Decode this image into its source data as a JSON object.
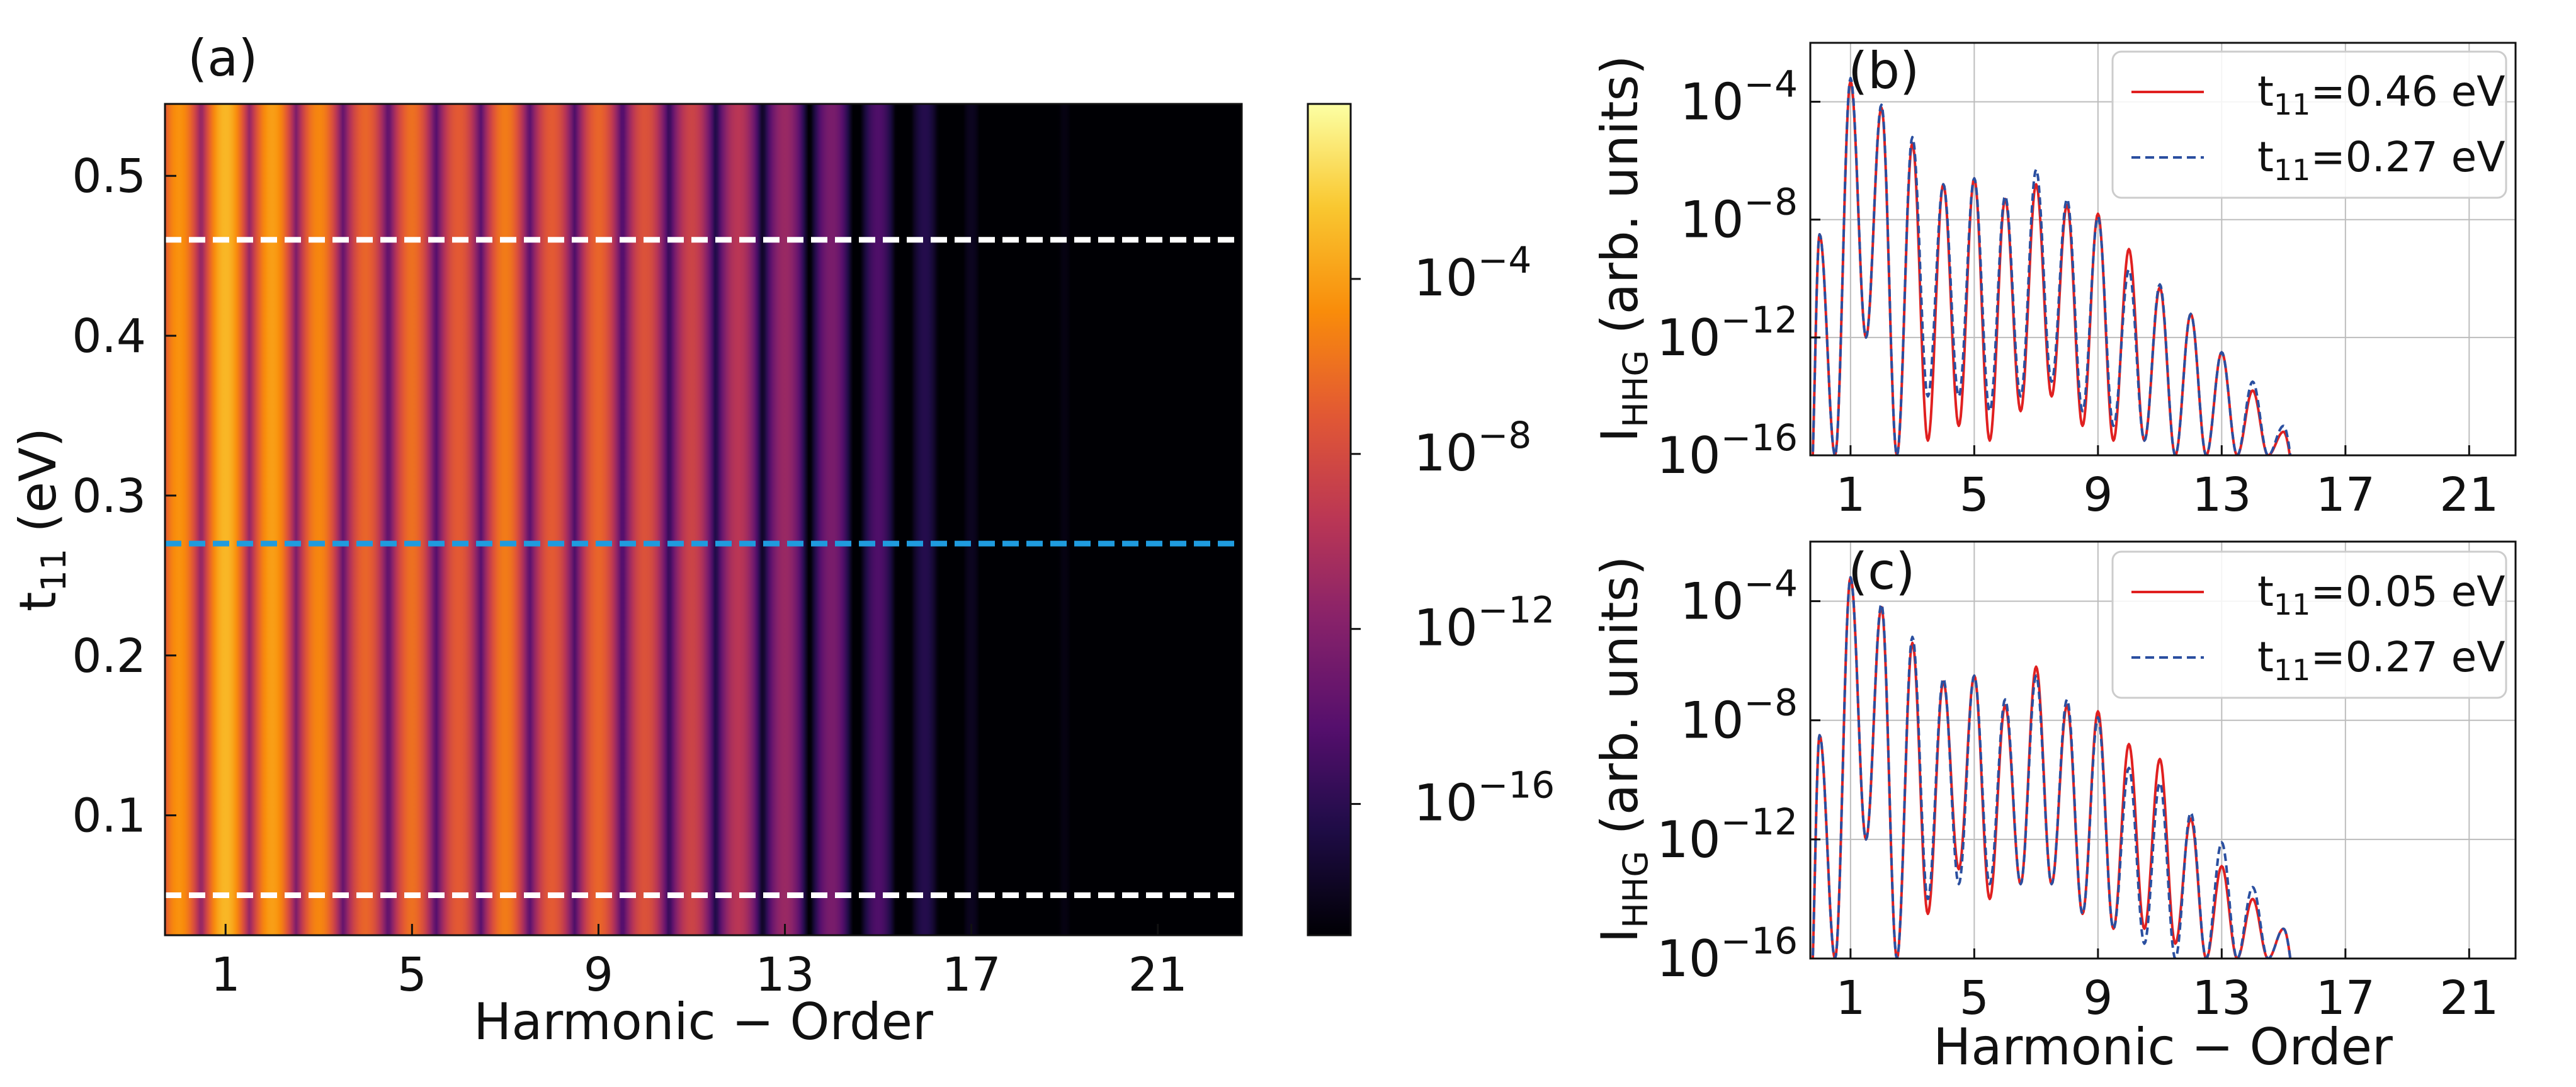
{
  "chart_data": [
    {
      "type": "heatmap",
      "panel_label": "(a)",
      "xlabel": "Harmonic − Order",
      "ylabel_main": "t",
      "ylabel_sub": "11",
      "ylabel_unit": " (eV)",
      "xlim": [
        -0.3,
        22.8
      ],
      "ylim": [
        0.025,
        0.545
      ],
      "xticks": [
        1,
        5,
        9,
        13,
        17,
        21
      ],
      "xtick_labels": [
        "1",
        "5",
        "9",
        "13",
        "17",
        "21"
      ],
      "yticks": [
        0.1,
        0.2,
        0.3,
        0.4,
        0.5
      ],
      "ytick_labels": [
        "0.1",
        "0.2",
        "0.3",
        "0.4",
        "0.5"
      ],
      "colorscale": "inferno",
      "colorbar_range_log10": [
        -19,
        0
      ],
      "colorbar_ticks_log10": [
        -16,
        -12,
        -8,
        -4
      ],
      "colorbar_tick_base": "10",
      "colorbar_tick_exponents": [
        "−16",
        "−12",
        "−8",
        "−4"
      ],
      "intensity_peaks_log10": [
        {
          "order": 0,
          "value": -4.5
        },
        {
          "order": 1,
          "value": -3.0
        },
        {
          "order": 2,
          "value": -4.0
        },
        {
          "order": 3,
          "value": -5.0
        },
        {
          "order": 4,
          "value": -6.5
        },
        {
          "order": 5,
          "value": -6.0
        },
        {
          "order": 6,
          "value": -7.0
        },
        {
          "order": 7,
          "value": -5.5
        },
        {
          "order": 8,
          "value": -7.0
        },
        {
          "order": 9,
          "value": -6.5
        },
        {
          "order": 10,
          "value": -7.5
        },
        {
          "order": 11,
          "value": -8.5
        },
        {
          "order": 12,
          "value": -9.5
        },
        {
          "order": 13,
          "value": -11.0
        },
        {
          "order": 14,
          "value": -12.5
        },
        {
          "order": 15,
          "value": -14.5
        },
        {
          "order": 16,
          "value": -16.3
        },
        {
          "order": 17,
          "value": -18.0
        },
        {
          "order": 19,
          "value": -18.5
        }
      ],
      "reference_lines": [
        {
          "t11": 0.46,
          "color": "#ffffff",
          "style": "dashed"
        },
        {
          "t11": 0.27,
          "color": "#1f9bde",
          "style": "dashed"
        },
        {
          "t11": 0.05,
          "color": "#ffffff",
          "style": "dashed"
        }
      ]
    },
    {
      "type": "line",
      "panel_label": "(b)",
      "xlabel": "",
      "ylabel_main": "I",
      "ylabel_sub": "HHG",
      "ylabel_unit": " (arb. units)",
      "xlim": [
        -0.3,
        22.5
      ],
      "ylim_log10": [
        -16,
        -2
      ],
      "yscale": "log",
      "xticks": [
        1,
        5,
        9,
        13,
        17,
        21
      ],
      "xtick_labels": [
        "1",
        "5",
        "9",
        "13",
        "17",
        "21"
      ],
      "yticks_log10": [
        -16,
        -12,
        -8,
        -4
      ],
      "ytick_base": "10",
      "ytick_exponents": [
        "−16",
        "−12",
        "−8",
        "−4"
      ],
      "grid": true,
      "legend_position": "top-right",
      "series": [
        {
          "name_main": "t",
          "name_sub": "11",
          "name_rest": "=0.46 eV",
          "color": "#e02020",
          "style": "solid",
          "peaks": [
            [
              0,
              -8.5
            ],
            [
              1,
              -3.3
            ],
            [
              2,
              -4.2
            ],
            [
              3,
              -5.4
            ],
            [
              4,
              -6.8
            ],
            [
              5,
              -6.6
            ],
            [
              6,
              -7.3
            ],
            [
              7,
              -6.8
            ],
            [
              8,
              -7.5
            ],
            [
              9,
              -7.8
            ],
            [
              10,
              -9.0
            ],
            [
              11,
              -10.3
            ],
            [
              12,
              -11.2
            ],
            [
              13,
              -12.5
            ],
            [
              14,
              -13.8
            ],
            [
              15,
              -15.2
            ]
          ],
          "valleys": [
            [
              0.5,
              -16
            ],
            [
              1.5,
              -12.0
            ],
            [
              2.5,
              -16
            ],
            [
              3.5,
              -15.5
            ],
            [
              4.5,
              -15.0
            ],
            [
              5.5,
              -15.5
            ],
            [
              6.5,
              -14.5
            ],
            [
              7.5,
              -14.0
            ],
            [
              8.5,
              -15.0
            ],
            [
              9.5,
              -15.5
            ],
            [
              10.5,
              -15.5
            ],
            [
              11.5,
              -16
            ],
            [
              12.5,
              -16
            ],
            [
              13.5,
              -16
            ],
            [
              14.5,
              -16
            ]
          ]
        },
        {
          "name_main": "t",
          "name_sub": "11",
          "name_rest": "=0.27 eV",
          "color": "#2a4fa0",
          "style": "dashed",
          "peaks": [
            [
              0,
              -8.5
            ],
            [
              1,
              -3.2
            ],
            [
              2,
              -4.1
            ],
            [
              3,
              -5.2
            ],
            [
              4,
              -6.8
            ],
            [
              5,
              -6.6
            ],
            [
              6,
              -7.2
            ],
            [
              7,
              -6.3
            ],
            [
              8,
              -7.3
            ],
            [
              9,
              -7.9
            ],
            [
              10,
              -9.7
            ],
            [
              11,
              -10.2
            ],
            [
              12,
              -11.2
            ],
            [
              13,
              -12.5
            ],
            [
              14,
              -13.5
            ],
            [
              15,
              -15.0
            ]
          ],
          "valleys": [
            [
              0.5,
              -16
            ],
            [
              1.5,
              -12.0
            ],
            [
              2.5,
              -16
            ],
            [
              3.5,
              -14.0
            ],
            [
              4.5,
              -14.0
            ],
            [
              5.5,
              -14.5
            ],
            [
              6.5,
              -14.0
            ],
            [
              7.5,
              -13.5
            ],
            [
              8.5,
              -14.5
            ],
            [
              9.5,
              -15.0
            ],
            [
              10.5,
              -15.5
            ],
            [
              11.5,
              -16
            ],
            [
              12.5,
              -16
            ],
            [
              13.5,
              -16
            ],
            [
              14.5,
              -16
            ]
          ]
        }
      ]
    },
    {
      "type": "line",
      "panel_label": "(c)",
      "xlabel": "Harmonic − Order",
      "ylabel_main": "I",
      "ylabel_sub": "HHG",
      "ylabel_unit": " (arb. units)",
      "xlim": [
        -0.3,
        22.5
      ],
      "ylim_log10": [
        -16,
        -2
      ],
      "yscale": "log",
      "xticks": [
        1,
        5,
        9,
        13,
        17,
        21
      ],
      "xtick_labels": [
        "1",
        "5",
        "9",
        "13",
        "17",
        "21"
      ],
      "yticks_log10": [
        -16,
        -12,
        -8,
        -4
      ],
      "ytick_base": "10",
      "ytick_exponents": [
        "−16",
        "−12",
        "−8",
        "−4"
      ],
      "grid": true,
      "legend_position": "top-right",
      "series": [
        {
          "name_main": "t",
          "name_sub": "11",
          "name_rest": "=0.05 eV",
          "color": "#e02020",
          "style": "solid",
          "peaks": [
            [
              0,
              -8.5
            ],
            [
              1,
              -3.2
            ],
            [
              2,
              -4.2
            ],
            [
              3,
              -5.4
            ],
            [
              4,
              -6.7
            ],
            [
              5,
              -6.5
            ],
            [
              6,
              -7.5
            ],
            [
              7,
              -6.2
            ],
            [
              8,
              -7.5
            ],
            [
              9,
              -7.7
            ],
            [
              10,
              -8.8
            ],
            [
              11,
              -9.3
            ],
            [
              12,
              -11.3
            ],
            [
              13,
              -12.9
            ],
            [
              14,
              -14.0
            ],
            [
              15,
              -15.0
            ]
          ],
          "valleys": [
            [
              0.5,
              -16
            ],
            [
              1.5,
              -12.0
            ],
            [
              2.5,
              -16
            ],
            [
              3.5,
              -14.5
            ],
            [
              4.5,
              -13.0
            ],
            [
              5.5,
              -14.0
            ],
            [
              6.5,
              -13.5
            ],
            [
              7.5,
              -13.5
            ],
            [
              8.5,
              -14.5
            ],
            [
              9.5,
              -15.0
            ],
            [
              10.5,
              -15.0
            ],
            [
              11.5,
              -15.5
            ],
            [
              12.5,
              -16
            ],
            [
              13.5,
              -16
            ],
            [
              14.5,
              -16
            ]
          ]
        },
        {
          "name_main": "t",
          "name_sub": "11",
          "name_rest": "=0.27 eV",
          "color": "#2a4fa0",
          "style": "dashed",
          "peaks": [
            [
              0,
              -8.5
            ],
            [
              1,
              -3.2
            ],
            [
              2,
              -4.1
            ],
            [
              3,
              -5.2
            ],
            [
              4,
              -6.6
            ],
            [
              5,
              -6.5
            ],
            [
              6,
              -7.3
            ],
            [
              7,
              -6.5
            ],
            [
              8,
              -7.3
            ],
            [
              9,
              -7.9
            ],
            [
              10,
              -9.6
            ],
            [
              11,
              -10.1
            ],
            [
              12,
              -11.1
            ],
            [
              13,
              -12.1
            ],
            [
              14,
              -13.6
            ],
            [
              15,
              -15.0
            ]
          ],
          "valleys": [
            [
              0.5,
              -16
            ],
            [
              1.5,
              -12.0
            ],
            [
              2.5,
              -16
            ],
            [
              3.5,
              -14.0
            ],
            [
              4.5,
              -13.5
            ],
            [
              5.5,
              -13.5
            ],
            [
              6.5,
              -13.5
            ],
            [
              7.5,
              -13.5
            ],
            [
              8.5,
              -14.5
            ],
            [
              9.5,
              -15.0
            ],
            [
              10.5,
              -15.5
            ],
            [
              11.5,
              -16
            ],
            [
              12.5,
              -16
            ],
            [
              13.5,
              -16
            ],
            [
              14.5,
              -16
            ]
          ]
        }
      ]
    }
  ]
}
